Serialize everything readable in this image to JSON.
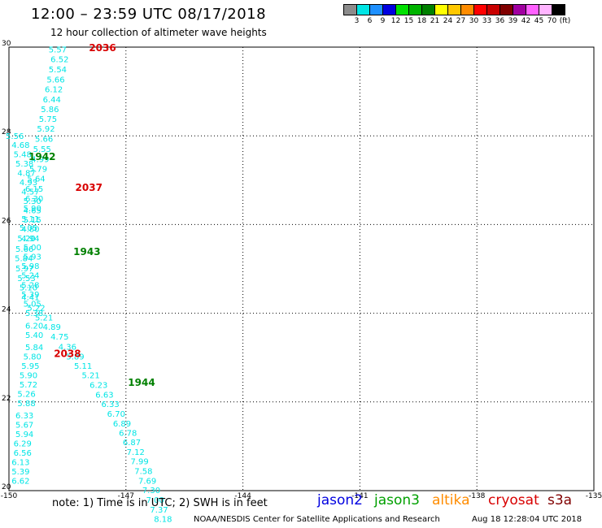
{
  "header": {
    "title": "12:00 – 23:59 UTC 08/17/2018",
    "subtitle": "12 hour collection of altimeter wave heights"
  },
  "legend": {
    "labels": [
      "3",
      "6",
      "9",
      "12",
      "15",
      "18",
      "21",
      "24",
      "27",
      "30",
      "33",
      "36",
      "39",
      "42",
      "45",
      "70",
      "(ft)"
    ],
    "colors": [
      "#8c8c8c",
      "#00e5e5",
      "#1e90ff",
      "#0000e0",
      "#00e000",
      "#00b400",
      "#008000",
      "#ffff00",
      "#ffc800",
      "#ff8c00",
      "#ff0000",
      "#c80000",
      "#800000",
      "#a000a0",
      "#ff60ff",
      "#ffb4ff",
      "#000000"
    ]
  },
  "chart_data": {
    "type": "scatter",
    "xlim": [
      -150,
      -135
    ],
    "ylim": [
      20,
      30
    ],
    "x_ticks": [
      "-150",
      "-147",
      "-144",
      "-141",
      "-138",
      "-135"
    ],
    "y_ticks": [
      "20",
      "22",
      "24",
      "26",
      "28",
      "30"
    ],
    "grid": true,
    "series": [
      {
        "name": "jason3",
        "color": "#00e5e5",
        "points": [
          {
            "x": -148.75,
            "y": 29.95,
            "label": "5.57"
          },
          {
            "x": -148.7,
            "y": 29.73,
            "label": "6.52"
          },
          {
            "x": -148.75,
            "y": 29.51,
            "label": "5.54"
          },
          {
            "x": -148.8,
            "y": 29.28,
            "label": "5.66"
          },
          {
            "x": -148.85,
            "y": 29.06,
            "label": "6.12"
          },
          {
            "x": -148.9,
            "y": 28.83,
            "label": "6.44"
          },
          {
            "x": -148.95,
            "y": 28.61,
            "label": "5.86"
          },
          {
            "x": -149.0,
            "y": 28.39,
            "label": "5.75"
          },
          {
            "x": -149.05,
            "y": 28.17,
            "label": "5.92"
          },
          {
            "x": -149.1,
            "y": 27.94,
            "label": "5.66"
          },
          {
            "x": -149.15,
            "y": 27.71,
            "label": "5.55"
          },
          {
            "x": -149.2,
            "y": 27.48,
            "label": "4.99"
          },
          {
            "x": -149.25,
            "y": 27.26,
            "label": "5.79"
          },
          {
            "x": -149.3,
            "y": 27.04,
            "label": "5.64"
          },
          {
            "x": -149.35,
            "y": 26.81,
            "label": "6.15"
          },
          {
            "x": -149.35,
            "y": 26.59,
            "label": "6.30"
          },
          {
            "x": -149.4,
            "y": 26.37,
            "label": "5.90"
          },
          {
            "x": -149.45,
            "y": 26.14,
            "label": "5.11"
          },
          {
            "x": -149.5,
            "y": 25.93,
            "label": "5.05"
          },
          {
            "x": -149.55,
            "y": 25.7,
            "label": "5.20"
          },
          {
            "x": -149.6,
            "y": 25.46,
            "label": "5.66"
          },
          {
            "x": -149.62,
            "y": 25.25,
            "label": "5.84"
          },
          {
            "x": -149.6,
            "y": 25.02,
            "label": "5.97"
          },
          {
            "x": -149.55,
            "y": 24.8,
            "label": "5.53"
          },
          {
            "x": -149.5,
            "y": 24.59,
            "label": "5.10"
          },
          {
            "x": -149.45,
            "y": 24.37,
            "label": "4.41"
          },
          {
            "x": -149.3,
            "y": 24.13,
            "label": "5.22"
          },
          {
            "x": -149.1,
            "y": 23.91,
            "label": "5.21"
          },
          {
            "x": -148.9,
            "y": 23.7,
            "label": "4.89"
          },
          {
            "x": -148.7,
            "y": 23.48,
            "label": "4.75"
          },
          {
            "x": -148.5,
            "y": 23.25,
            "label": "4.36"
          },
          {
            "x": -148.3,
            "y": 23.03,
            "label": "5.89"
          },
          {
            "x": -148.1,
            "y": 22.82,
            "label": "5.11"
          },
          {
            "x": -147.9,
            "y": 22.61,
            "label": "5.21"
          },
          {
            "x": -147.7,
            "y": 22.39,
            "label": "6.23"
          },
          {
            "x": -147.55,
            "y": 22.17,
            "label": "6.63"
          },
          {
            "x": -147.4,
            "y": 21.96,
            "label": "6.33"
          },
          {
            "x": -147.25,
            "y": 21.74,
            "label": "6.70"
          },
          {
            "x": -147.1,
            "y": 21.52,
            "label": "6.89"
          },
          {
            "x": -146.95,
            "y": 21.31,
            "label": "6.78"
          },
          {
            "x": -146.85,
            "y": 21.1,
            "label": "6.87"
          },
          {
            "x": -146.75,
            "y": 20.88,
            "label": "7.12"
          },
          {
            "x": -146.65,
            "y": 20.67,
            "label": "7.99"
          },
          {
            "x": -146.55,
            "y": 20.45,
            "label": "7.58"
          },
          {
            "x": -146.45,
            "y": 20.23,
            "label": "7.69"
          },
          {
            "x": -146.35,
            "y": 20.02,
            "label": "7.30"
          },
          {
            "x": -146.25,
            "y": 19.8,
            "label": "7.00"
          },
          {
            "x": -146.15,
            "y": 19.58,
            "label": "7.37"
          },
          {
            "x": -146.05,
            "y": 19.37,
            "label": "8.18"
          }
        ]
      },
      {
        "name": "jason2",
        "color": "#00e5e5",
        "points": [
          {
            "x": -149.85,
            "y": 28.0,
            "label": "5.56"
          },
          {
            "x": -149.7,
            "y": 27.8,
            "label": "4.68"
          },
          {
            "x": -149.65,
            "y": 27.59,
            "label": "5.48"
          },
          {
            "x": -149.6,
            "y": 27.38,
            "label": "5.38"
          },
          {
            "x": -149.55,
            "y": 27.17,
            "label": "4.87"
          },
          {
            "x": -149.5,
            "y": 26.96,
            "label": "4.93"
          },
          {
            "x": -149.45,
            "y": 26.75,
            "label": "4.57"
          },
          {
            "x": -149.4,
            "y": 26.54,
            "label": "5.30"
          },
          {
            "x": -149.4,
            "y": 26.33,
            "label": "4.65"
          },
          {
            "x": -149.4,
            "y": 26.12,
            "label": "5.15"
          },
          {
            "x": -149.45,
            "y": 25.91,
            "label": "4.80"
          },
          {
            "x": -149.45,
            "y": 25.7,
            "label": "4.94"
          },
          {
            "x": -149.4,
            "y": 25.49,
            "label": "5.00"
          },
          {
            "x": -149.4,
            "y": 25.28,
            "label": "5.93"
          },
          {
            "x": -149.45,
            "y": 25.07,
            "label": "5.98"
          },
          {
            "x": -149.45,
            "y": 24.86,
            "label": "5.24"
          },
          {
            "x": -149.45,
            "y": 24.64,
            "label": "5.28"
          },
          {
            "x": -149.45,
            "y": 24.43,
            "label": "5.39"
          },
          {
            "x": -149.4,
            "y": 24.22,
            "label": "5.05"
          },
          {
            "x": -149.35,
            "y": 24.01,
            "label": "5.38"
          },
          {
            "x": -149.35,
            "y": 23.73,
            "label": "6.20"
          },
          {
            "x": -149.35,
            "y": 23.52,
            "label": "5.40"
          },
          {
            "x": -149.35,
            "y": 23.24,
            "label": "5.84"
          },
          {
            "x": -149.4,
            "y": 23.03,
            "label": "5.80"
          },
          {
            "x": -149.45,
            "y": 22.82,
            "label": "5.95"
          },
          {
            "x": -149.5,
            "y": 22.61,
            "label": "5.90"
          },
          {
            "x": -149.5,
            "y": 22.4,
            "label": "5.72"
          },
          {
            "x": -149.55,
            "y": 22.19,
            "label": "5.26"
          },
          {
            "x": -149.55,
            "y": 21.98,
            "label": "5.88"
          },
          {
            "x": -149.6,
            "y": 21.7,
            "label": "6.33"
          },
          {
            "x": -149.6,
            "y": 21.49,
            "label": "5.67"
          },
          {
            "x": -149.6,
            "y": 21.28,
            "label": "5.94"
          },
          {
            "x": -149.65,
            "y": 21.07,
            "label": "6.29"
          },
          {
            "x": -149.65,
            "y": 20.86,
            "label": "6.56"
          },
          {
            "x": -149.7,
            "y": 20.65,
            "label": "6.13"
          },
          {
            "x": -149.7,
            "y": 20.44,
            "label": "5.39"
          },
          {
            "x": -149.7,
            "y": 20.23,
            "label": "6.62"
          }
        ]
      }
    ],
    "time_labels": [
      {
        "x": -147.6,
        "y": 30.0,
        "text": "2036",
        "color": "#d80000"
      },
      {
        "x": -149.15,
        "y": 27.55,
        "text": "1942",
        "color": "#008000"
      },
      {
        "x": -147.95,
        "y": 26.85,
        "text": "2037",
        "color": "#d80000"
      },
      {
        "x": -148.0,
        "y": 25.4,
        "text": "1943",
        "color": "#008000"
      },
      {
        "x": -148.5,
        "y": 23.1,
        "text": "2038",
        "color": "#d80000"
      },
      {
        "x": -146.6,
        "y": 22.45,
        "text": "1944",
        "color": "#008000"
      }
    ]
  },
  "satellites": [
    {
      "name": "jason2",
      "color": "#0000e0"
    },
    {
      "name": "jason3",
      "color": "#00a000"
    },
    {
      "name": "altika",
      "color": "#ff8c00"
    },
    {
      "name": "cryosat",
      "color": "#d80000"
    },
    {
      "name": "s3a",
      "color": "#800000"
    }
  ],
  "footer": {
    "note": "note: 1) Time is in UTC; 2) SWH is in feet",
    "center": "NOAA/NESDIS Center for Satellite Applications and Research",
    "timestamp": "Aug 18 12:28:04 UTC 2018"
  }
}
